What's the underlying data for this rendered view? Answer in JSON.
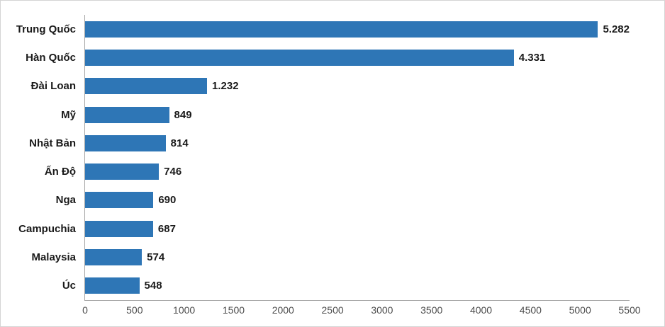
{
  "chart_data": {
    "type": "bar",
    "orientation": "horizontal",
    "title": "",
    "xlabel": "",
    "ylabel": "",
    "categories": [
      "Trung Quốc",
      "Hàn Quốc",
      "Đài Loan",
      "Mỹ",
      "Nhật Bản",
      "Ấn Độ",
      "Nga",
      "Campuchia",
      "Malaysia",
      "Úc"
    ],
    "values": [
      5282,
      4331,
      1232,
      849,
      814,
      746,
      690,
      687,
      574,
      548
    ],
    "value_labels": [
      "5.282",
      "4.331",
      "1.232",
      "849",
      "814",
      "746",
      "690",
      "687",
      "574",
      "548"
    ],
    "xlim": [
      0,
      5500
    ],
    "x_ticks": [
      "0",
      "500",
      "1000",
      "1500",
      "2000",
      "2500",
      "3000",
      "3500",
      "4000",
      "4500",
      "5000",
      "5500"
    ],
    "grid": false,
    "legend": false,
    "colors": {
      "bar": "#2e76b6",
      "axis_line": "#a6a6a6",
      "tick_text": "#4d4d4d",
      "label_text": "#1a1a1a",
      "frame_border": "#d4d4d4",
      "background": "#ffffff"
    }
  }
}
